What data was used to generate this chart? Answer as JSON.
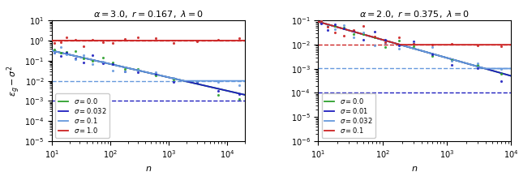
{
  "panels": [
    {
      "title": "$\\alpha = 3.0,\\ r = 0.167,\\ \\lambda = 0$",
      "xlim": [
        10,
        20000
      ],
      "ylim": [
        1e-05,
        10
      ],
      "sigma_labels": [
        "$\\sigma = 0.0$",
        "$\\sigma = 0.032$",
        "$\\sigma = 0.1$",
        "$\\sigma = 1.0$"
      ],
      "colors": [
        "#2ca02c",
        "#1f1fbf",
        "#6699dd",
        "#cc2222"
      ],
      "decay_exp": -0.667,
      "amplitude": 0.32,
      "noise_floors": [
        null,
        0.001024,
        0.01,
        1.0
      ],
      "n_ref": 10,
      "dot_n_values": [
        11,
        14,
        18,
        25,
        35,
        50,
        75,
        110,
        180,
        300,
        600,
        1200,
        3000,
        7000,
        16000
      ],
      "dot_scatter_seed": 42
    },
    {
      "title": "$\\alpha = 2.0,\\ r = 0.375,\\ \\lambda = 0$",
      "xlim": [
        10,
        10000
      ],
      "ylim": [
        1e-06,
        0.1
      ],
      "sigma_labels": [
        "$\\sigma = 0.0$",
        "$\\sigma = 0.01$",
        "$\\sigma = 0.032$",
        "$\\sigma = 0.1$"
      ],
      "colors": [
        "#2ca02c",
        "#1f1fbf",
        "#6699dd",
        "#cc2222"
      ],
      "decay_exp": -0.75,
      "amplitude": 0.09,
      "noise_floors": [
        null,
        0.0001,
        0.001024,
        0.01
      ],
      "n_ref": 10,
      "dot_n_values": [
        11,
        14,
        18,
        25,
        35,
        50,
        75,
        110,
        180,
        300,
        600,
        1200,
        3000,
        7000
      ],
      "dot_scatter_seed": 7
    }
  ],
  "ylabel": "$\\varepsilon_g - \\sigma^2$",
  "xlabel": "$n$"
}
